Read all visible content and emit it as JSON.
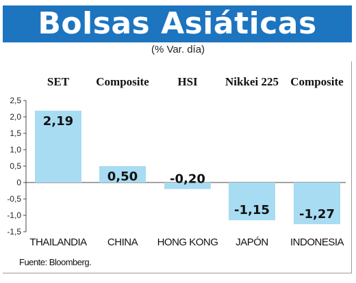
{
  "title": "Bolsas Asiáticas",
  "subtitle": "(% Var. día)",
  "source": "Fuente: Bloomberg.",
  "chart_data": {
    "type": "bar",
    "indices": [
      "SET",
      "Composite",
      "HSI",
      "Nikkei 225",
      "Composite"
    ],
    "categories": [
      "THAILANDIA",
      "CHINA",
      "HONG KONG",
      "JAPÓN",
      "INDONESIA"
    ],
    "values": [
      2.19,
      0.5,
      -0.2,
      -1.15,
      -1.27
    ],
    "value_labels": [
      "2,19",
      "0,50",
      "-0,20",
      "-1,15",
      "-1,27"
    ],
    "y_ticks": [
      "2,5",
      "2,0",
      "1,5",
      "1,0",
      "0,5",
      "0",
      "-0,5",
      "-1,0",
      "-1,5"
    ],
    "y_tick_values": [
      2.5,
      2.0,
      1.5,
      1.0,
      0.5,
      0,
      -0.5,
      -1.0,
      -1.5
    ],
    "ylim": [
      -1.5,
      2.5
    ],
    "bar_color": "#a8dcf2",
    "grid": false
  }
}
